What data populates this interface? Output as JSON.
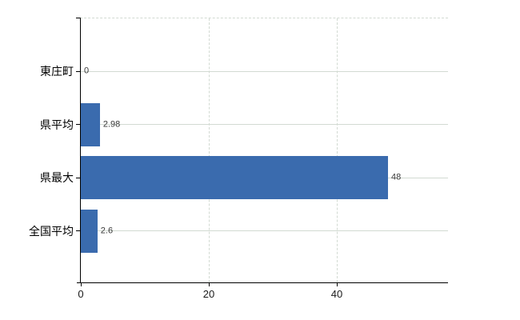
{
  "chart_data": {
    "type": "bar",
    "orientation": "horizontal",
    "title": "",
    "xlabel": "",
    "ylabel": "",
    "categories": [
      "東庄町",
      "県平均",
      "県最大",
      "全国平均"
    ],
    "values": [
      0,
      2.98,
      48,
      2.6
    ],
    "value_labels": [
      "0",
      "2.98",
      "48",
      "2.6"
    ],
    "x_ticks": [
      0,
      20,
      40
    ],
    "x_tick_labels": [
      "0",
      "20",
      "40"
    ],
    "xlim": [
      0,
      57.5
    ],
    "grid": "horizontal solid per category, vertical dashed at ticks, dashed top border",
    "legend": false,
    "colors": {
      "bar": "#3a6bae",
      "grid": "#d2dad2",
      "axis": "#000000",
      "text": "#1a1a1a",
      "value_text": "#3a3a3a",
      "background": "#ffffff"
    }
  }
}
